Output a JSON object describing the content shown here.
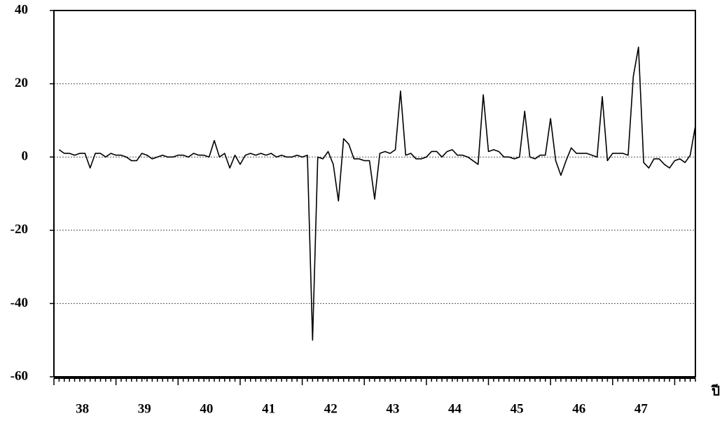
{
  "chart_data": {
    "type": "line",
    "x_label": "ปี",
    "x": [
      1,
      2,
      3,
      4,
      5,
      6,
      7,
      8,
      9,
      10,
      11,
      12,
      13,
      14,
      15,
      16,
      17,
      18,
      19,
      20,
      21,
      22,
      23,
      24,
      25,
      26,
      27,
      28,
      29,
      30,
      31,
      32,
      33,
      34,
      35,
      36,
      37,
      38,
      39,
      40,
      41,
      42,
      43,
      44,
      45,
      46,
      47,
      48,
      49,
      50,
      51,
      52,
      53,
      54,
      55,
      56,
      57,
      58,
      59,
      60,
      61,
      62,
      63,
      64,
      65,
      66,
      67,
      68,
      69,
      70,
      71,
      72,
      73,
      74,
      75,
      76,
      77,
      78,
      79,
      80,
      81,
      82,
      83,
      84,
      85,
      86,
      87,
      88,
      89,
      90,
      91,
      92,
      93,
      94,
      95,
      96,
      97,
      98,
      99,
      100,
      101,
      102,
      103,
      104,
      105,
      106,
      107,
      108,
      109,
      110,
      111,
      112,
      113,
      114,
      115,
      116,
      117,
      118,
      119,
      120,
      121,
      122,
      123,
      124
    ],
    "values": [
      2,
      1,
      1,
      0.5,
      1,
      1,
      -3,
      1,
      1,
      0,
      1,
      0.5,
      0.5,
      0,
      -1,
      -1,
      1,
      0.5,
      -0.5,
      0,
      0.5,
      0,
      0,
      0.5,
      0.5,
      0,
      1,
      0.5,
      0.5,
      0,
      4.5,
      0,
      1,
      -3,
      0.5,
      -2,
      0.5,
      1,
      0.5,
      1,
      0.5,
      1,
      0,
      0.5,
      0,
      0,
      0.5,
      0,
      0.5,
      -50,
      0,
      -0.5,
      1.5,
      -2,
      -12,
      5,
      3.5,
      -0.5,
      -0.5,
      -1,
      -1,
      -11.5,
      1,
      1.5,
      1,
      2,
      18,
      0.5,
      1,
      -0.5,
      -0.5,
      0,
      1.5,
      1.5,
      0,
      1.5,
      2,
      0.5,
      0.5,
      0,
      -1,
      -2,
      17,
      1.5,
      2,
      1.5,
      0,
      0,
      -0.5,
      0,
      12.5,
      0,
      -0.5,
      0.5,
      0.5,
      10.5,
      -1,
      -5,
      -1,
      2.5,
      1,
      1,
      1,
      0.5,
      0,
      16.5,
      -1,
      1,
      1,
      1,
      0.5,
      22,
      30,
      -1.5,
      -3,
      -0.5,
      -0.5,
      -2,
      -3,
      -1,
      -0.5,
      -1.5,
      0.5,
      8.5
    ],
    "color": "#000000",
    "xlim": [
      0,
      124
    ],
    "xticks": [
      {
        "value": 5.5,
        "label": "38"
      },
      {
        "value": 17.5,
        "label": "39"
      },
      {
        "value": 29.5,
        "label": "40"
      },
      {
        "value": 41.5,
        "label": "41"
      },
      {
        "value": 53.5,
        "label": "42"
      },
      {
        "value": 65.5,
        "label": "43"
      },
      {
        "value": 77.5,
        "label": "44"
      },
      {
        "value": 89.5,
        "label": "45"
      },
      {
        "value": 101.5,
        "label": "46"
      },
      {
        "value": 113.5,
        "label": "47"
      }
    ],
    "ylim": [
      -60,
      40
    ],
    "yticks": [
      -60,
      -40,
      -20,
      0,
      20,
      40
    ],
    "grid": true
  }
}
